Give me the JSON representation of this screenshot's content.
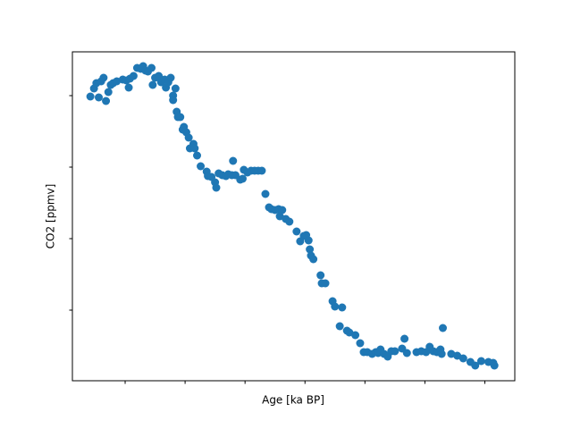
{
  "chart_data": {
    "type": "scatter",
    "xlabel": "Age [ka BP]",
    "ylabel": "CO2 [ppmv]",
    "color": "#1f77b4",
    "xlim": [
      0.6,
      37.5
    ],
    "ylim": [
      180.25,
      272.25
    ],
    "xticks": [
      5,
      10,
      15,
      20,
      25,
      30,
      35
    ],
    "yticks": [
      200,
      220,
      240,
      260
    ],
    "x": [
      2.1,
      2.4,
      2.6,
      2.8,
      3.0,
      3.2,
      3.4,
      3.6,
      3.8,
      4.0,
      4.3,
      4.8,
      5.1,
      5.3,
      5.4,
      5.7,
      6.0,
      6.3,
      6.5,
      6.7,
      6.9,
      7.2,
      7.3,
      7.5,
      7.8,
      8.0,
      8.3,
      8.4,
      8.6,
      8.8,
      9.0,
      9.0,
      9.2,
      9.3,
      9.4,
      9.6,
      9.8,
      9.9,
      10.1,
      10.3,
      10.4,
      10.7,
      10.8,
      11.0,
      11.3,
      11.8,
      11.9,
      12.2,
      12.5,
      12.6,
      12.8,
      13.1,
      13.4,
      13.6,
      13.9,
      14.0,
      14.2,
      14.6,
      14.8,
      14.9,
      15.2,
      15.5,
      15.8,
      16.1,
      16.4,
      16.7,
      17.0,
      17.2,
      17.5,
      17.8,
      17.9,
      18.1,
      18.4,
      18.7,
      19.3,
      19.6,
      19.9,
      20.1,
      20.3,
      20.4,
      20.5,
      20.7,
      21.3,
      21.4,
      21.7,
      22.3,
      22.5,
      22.9,
      23.1,
      23.5,
      23.7,
      24.2,
      24.6,
      24.9,
      25.2,
      25.6,
      25.9,
      26.1,
      26.3,
      26.6,
      26.9,
      27.2,
      27.5,
      28.1,
      28.3,
      28.5,
      29.3,
      29.7,
      30.1,
      30.4,
      30.7,
      31.0,
      31.3,
      31.4,
      31.5,
      32.2,
      32.7,
      33.2,
      33.8,
      34.2,
      34.7,
      35.3,
      35.7,
      35.8
    ],
    "y": [
      259.75,
      262,
      263.5,
      259.5,
      264,
      265,
      258.5,
      261,
      263,
      263.5,
      264,
      264.5,
      264.25,
      262.25,
      264.75,
      265.5,
      267.75,
      267.5,
      268.25,
      267,
      266.75,
      267.75,
      263,
      265,
      265.5,
      263.75,
      264.5,
      262.25,
      263.75,
      265,
      260,
      258.75,
      262,
      255.5,
      254,
      254,
      250.5,
      251.25,
      249.75,
      248.25,
      245.25,
      246.5,
      245.25,
      243.25,
      240.25,
      238.75,
      237.5,
      237.25,
      235.75,
      234.25,
      238.25,
      237.75,
      237.5,
      238,
      237.75,
      241.75,
      237.75,
      236.5,
      236.75,
      239.25,
      238.5,
      239,
      239,
      239,
      239,
      232.5,
      228.75,
      228.25,
      228,
      228.25,
      226.25,
      228,
      225.5,
      224.75,
      222,
      219.25,
      220.75,
      221,
      219.5,
      217,
      215.25,
      214.25,
      209.75,
      207.5,
      207.5,
      202.5,
      201,
      195.5,
      200.75,
      194.25,
      193.75,
      193,
      190.75,
      188.25,
      188.25,
      187.75,
      188.25,
      188,
      189,
      187.75,
      187,
      188.5,
      188.5,
      189.25,
      192,
      188,
      188.25,
      188.5,
      188.25,
      189.75,
      188.5,
      188.25,
      189,
      187.75,
      195,
      187.75,
      187.25,
      186.5,
      185.5,
      184.5,
      185.75,
      185.5,
      185.25,
      184.5
    ]
  }
}
